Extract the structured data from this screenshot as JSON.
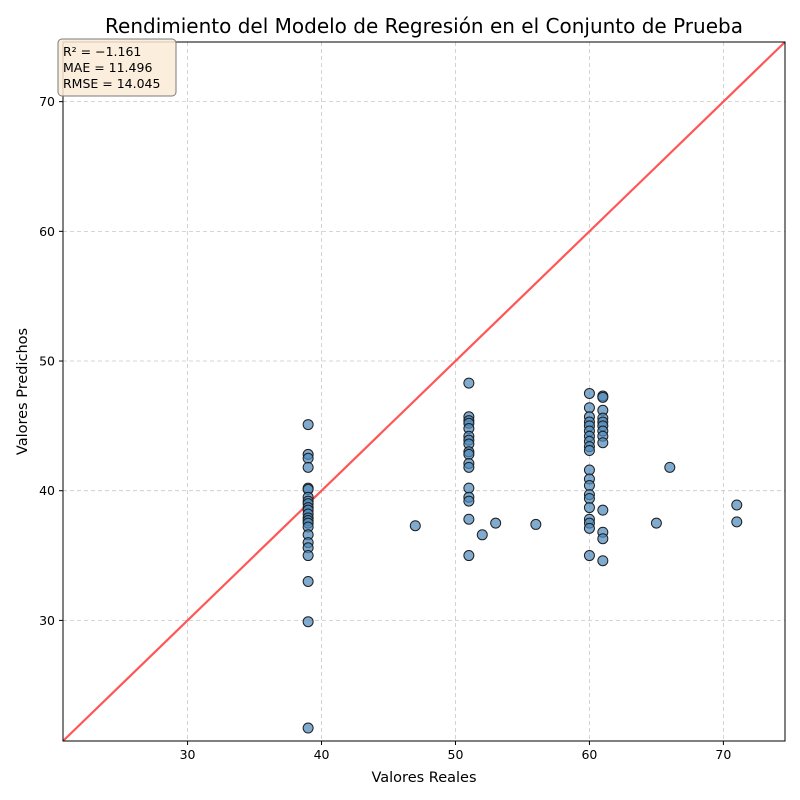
{
  "chart_data": {
    "type": "scatter",
    "title": "Rendimiento del Modelo de Regresión en el Conjunto de Prueba",
    "xlabel": "Valores Reales",
    "ylabel": "Valores Predichos",
    "xlim": [
      20.7,
      74.6
    ],
    "ylim": [
      20.7,
      74.6
    ],
    "xticks": [
      30,
      40,
      50,
      60,
      70
    ],
    "yticks": [
      30,
      40,
      50,
      60,
      70
    ],
    "grid": true,
    "reference_line": {
      "label": "y = x",
      "color": "#ff4444"
    },
    "point_color": "#4f8bbd",
    "stats": {
      "r2": "R² = −1.161",
      "mae": "MAE = 11.496",
      "rmse": "RMSE = 14.045"
    },
    "series": [
      {
        "name": "Predicciones",
        "points": [
          [
            39,
            45.1
          ],
          [
            39,
            42.8
          ],
          [
            39,
            42.5
          ],
          [
            39,
            41.8
          ],
          [
            39,
            40.2
          ],
          [
            39,
            40.1
          ],
          [
            39,
            39.5
          ],
          [
            39,
            39.2
          ],
          [
            39,
            39.0
          ],
          [
            39,
            38.7
          ],
          [
            39,
            38.5
          ],
          [
            39,
            38.2
          ],
          [
            39,
            37.9
          ],
          [
            39,
            37.7
          ],
          [
            39,
            37.5
          ],
          [
            39,
            37.2
          ],
          [
            39,
            36.6
          ],
          [
            39,
            36.0
          ],
          [
            39,
            35.6
          ],
          [
            39,
            35.0
          ],
          [
            39,
            33.0
          ],
          [
            39,
            29.9
          ],
          [
            39,
            21.7
          ],
          [
            47,
            37.3
          ],
          [
            51,
            48.3
          ],
          [
            51,
            45.7
          ],
          [
            51,
            45.4
          ],
          [
            51,
            45.2
          ],
          [
            51,
            44.8
          ],
          [
            51,
            44.2
          ],
          [
            51,
            43.9
          ],
          [
            51,
            43.6
          ],
          [
            51,
            43.0
          ],
          [
            51,
            42.8
          ],
          [
            51,
            42.1
          ],
          [
            51,
            41.8
          ],
          [
            51,
            40.2
          ],
          [
            51,
            39.5
          ],
          [
            51,
            39.2
          ],
          [
            51,
            37.8
          ],
          [
            51,
            35.0
          ],
          [
            52,
            36.6
          ],
          [
            53,
            37.5
          ],
          [
            56,
            37.4
          ],
          [
            60,
            47.5
          ],
          [
            60,
            46.4
          ],
          [
            60,
            45.7
          ],
          [
            60,
            45.3
          ],
          [
            60,
            45.0
          ],
          [
            60,
            44.6
          ],
          [
            60,
            44.2
          ],
          [
            60,
            43.8
          ],
          [
            60,
            43.4
          ],
          [
            60,
            43.1
          ],
          [
            60,
            41.6
          ],
          [
            60,
            40.9
          ],
          [
            60,
            40.4
          ],
          [
            60,
            39.7
          ],
          [
            60,
            39.4
          ],
          [
            60,
            38.7
          ],
          [
            60,
            37.8
          ],
          [
            60,
            37.5
          ],
          [
            60,
            37.1
          ],
          [
            60,
            35.0
          ],
          [
            61,
            47.3
          ],
          [
            61,
            47.2
          ],
          [
            61,
            46.2
          ],
          [
            61,
            45.6
          ],
          [
            61,
            45.3
          ],
          [
            61,
            45.0
          ],
          [
            61,
            44.6
          ],
          [
            61,
            44.2
          ],
          [
            61,
            43.7
          ],
          [
            61,
            38.5
          ],
          [
            61,
            36.8
          ],
          [
            61,
            36.3
          ],
          [
            61,
            34.6
          ],
          [
            65,
            37.5
          ],
          [
            66,
            41.8
          ],
          [
            71,
            38.9
          ],
          [
            71,
            37.6
          ]
        ]
      }
    ]
  }
}
